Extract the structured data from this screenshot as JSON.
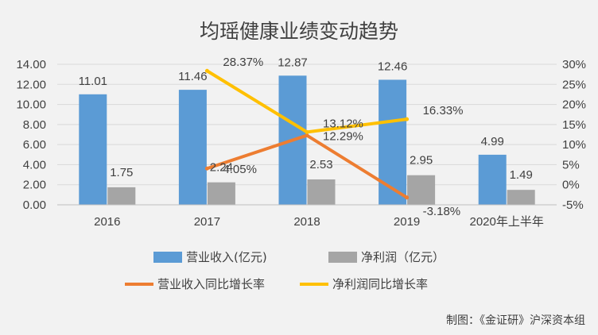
{
  "chart_data": {
    "type": "bar",
    "title": "均瑶健康业绩变动趋势",
    "categories": [
      "2016",
      "2017",
      "2018",
      "2019",
      "2020年上半年"
    ],
    "y_left": {
      "min": 0,
      "max": 14,
      "step": 2,
      "tick_labels": [
        "0.00",
        "2.00",
        "4.00",
        "6.00",
        "8.00",
        "10.00",
        "12.00",
        "14.00"
      ]
    },
    "y_right": {
      "min": -5,
      "max": 30,
      "step": 5,
      "tick_labels": [
        "-5%",
        "0%",
        "5%",
        "10%",
        "15%",
        "20%",
        "25%",
        "30%"
      ]
    },
    "bar_series": [
      {
        "name": "营业收入(亿元)",
        "color": "#5b9bd5",
        "values": [
          11.01,
          11.46,
          12.87,
          12.46,
          4.99
        ],
        "labels": [
          "11.01",
          "11.46",
          "12.87",
          "12.46",
          "4.99"
        ]
      },
      {
        "name": "净利润（亿元）",
        "color": "#a5a5a5",
        "values": [
          1.75,
          2.24,
          2.53,
          2.95,
          1.49
        ],
        "labels": [
          "1.75",
          "2.24",
          "2.53",
          "2.95",
          "1.49"
        ]
      }
    ],
    "line_series": [
      {
        "name": "营业收入同比增长率",
        "color": "#ed7d31",
        "categories": [
          "2017",
          "2018",
          "2019"
        ],
        "values": [
          4.05,
          12.29,
          -3.18
        ],
        "labels": [
          "4.05%",
          "12.29%",
          "-3.18%"
        ]
      },
      {
        "name": "净利润同比增长率",
        "color": "#ffc000",
        "categories": [
          "2017",
          "2018",
          "2019"
        ],
        "values": [
          28.37,
          13.12,
          16.33
        ],
        "labels": [
          "28.37%",
          "13.12%",
          "16.33%"
        ]
      }
    ],
    "legend_position": "bottom",
    "grid": true
  },
  "credit": "制图：《金证研》沪深资本组"
}
